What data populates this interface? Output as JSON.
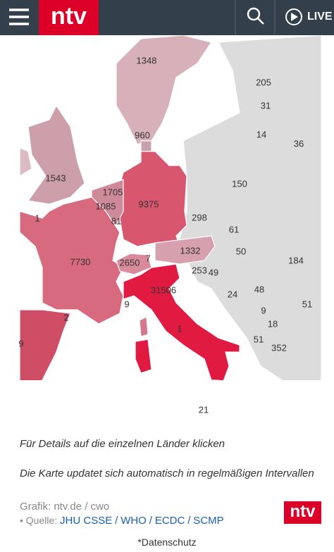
{
  "header": {
    "logo": "ntv",
    "live": "LIVE"
  },
  "map": {
    "labels": [
      1348,
      205,
      31,
      14,
      36,
      960,
      1543,
      150,
      1705,
      9375,
      1085,
      298,
      81,
      1,
      61,
      1332,
      50,
      184,
      7730,
      2650,
      7,
      253,
      49,
      31506,
      48,
      24,
      9,
      51,
      9,
      2,
      18,
      1,
      51,
      352,
      9,
      21
    ]
  },
  "caption": {
    "instruction": "Für Details auf die einzelnen Länder klicken",
    "note": "Die Karte updatet sich automatisch in regelmäßigen Intervallen"
  },
  "credits": {
    "grafik": "Grafik: ntv.de / cwo",
    "source_prefix": "• Quelle:",
    "separator": "/",
    "sources": [
      "JHU CSSE",
      "WHO",
      "ECDC",
      "SCMP"
    ]
  },
  "footer_logo": "ntv",
  "footer": "*Datenschutz"
}
